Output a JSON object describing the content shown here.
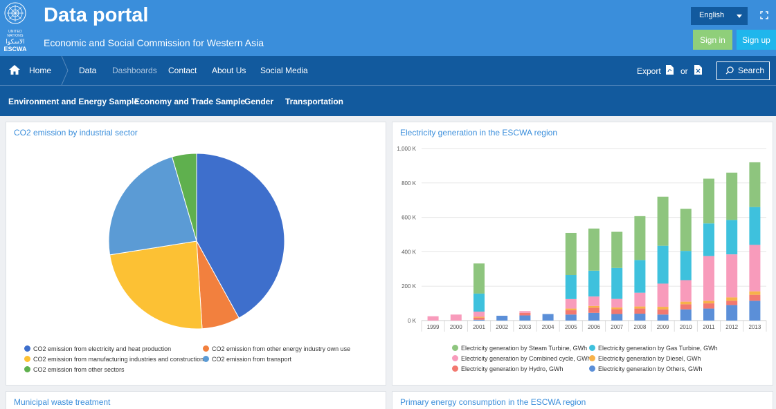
{
  "header": {
    "logo_un": "UNITED NATIONS",
    "logo_arabic": "الاسكوا",
    "logo_escwa": "ESCWA",
    "title": "Data portal",
    "subtitle": "Economic and Social Commission for Western Asia",
    "language": "English",
    "signin_label": "Sign in",
    "signup_label": "Sign up",
    "colors": {
      "header_bg": "#3a8edb",
      "nav_bg": "#125a9e",
      "signin": "#8fcf7a",
      "signup": "#1fb6ec"
    }
  },
  "nav": {
    "items": [
      "Home",
      "Data",
      "Dashboards",
      "Contact",
      "About Us",
      "Social Media"
    ],
    "export_label": "Export",
    "or_label": "or",
    "search_label": "Search"
  },
  "subnav": {
    "items": [
      "Environment and Energy Sample",
      "Economy and Trade Sample",
      "Gender",
      "Transportation"
    ]
  },
  "panels": {
    "co2_title": "CO2 emission by industrial sector",
    "elec_title": "Electricity generation in the ESCWA region",
    "waste_title": "Municipal waste treatment",
    "primary_title": "Primary energy consumption in the ESCWA region"
  },
  "chart_data": [
    {
      "type": "pie",
      "title": "CO2 emission by industrial sector",
      "legend_position": "bottom",
      "slices": [
        {
          "name": "CO2 emission from electricity and heat production",
          "value": 42.0,
          "color": "#3e6fcc"
        },
        {
          "name": "CO2 emission from other energy industry own use",
          "value": 7.0,
          "color": "#f2803e"
        },
        {
          "name": "CO2 emission from manufacturing industries and construction",
          "value": 23.5,
          "color": "#fcc134"
        },
        {
          "name": "CO2 emission from transport",
          "value": 23.0,
          "color": "#5b9bd5"
        },
        {
          "name": "CO2 emission from other sectors",
          "value": 4.5,
          "color": "#5fb04e"
        }
      ]
    },
    {
      "type": "bar",
      "stacked": true,
      "title": "Electricity generation in the ESCWA region",
      "legend_position": "bottom",
      "ylim": [
        0,
        1000000
      ],
      "yticks": [
        "0 K",
        "200 K",
        "400 K",
        "600 K",
        "800 K",
        "1,000 K"
      ],
      "categories": [
        "1999",
        "2000",
        "2001",
        "2002",
        "2003",
        "2004",
        "2005",
        "2006",
        "2007",
        "2008",
        "2009",
        "2010",
        "2011",
        "2012",
        "2013"
      ],
      "series": [
        {
          "name": "Electricity generation by Others, GWh",
          "color": "#5b8fd8",
          "values": [
            0,
            0,
            5000,
            28000,
            30000,
            38000,
            35000,
            45000,
            38000,
            40000,
            35000,
            65000,
            70000,
            90000,
            115000
          ]
        },
        {
          "name": "Electricity generation by Hydro, GWh",
          "color": "#f2786f",
          "values": [
            0,
            0,
            12000,
            0,
            15000,
            0,
            25000,
            30000,
            28000,
            30000,
            30000,
            30000,
            30000,
            25000,
            35000
          ]
        },
        {
          "name": "Electricity generation by Diesel, GWh",
          "color": "#f7b24a",
          "values": [
            0,
            0,
            5000,
            0,
            0,
            0,
            10000,
            10000,
            10000,
            12000,
            15000,
            15000,
            15000,
            20000,
            20000
          ]
        },
        {
          "name": "Electricity generation by Combined cycle, GWh",
          "color": "#f89bbb",
          "values": [
            25000,
            35000,
            30000,
            0,
            10000,
            0,
            55000,
            55000,
            50000,
            80000,
            135000,
            125000,
            260000,
            250000,
            270000
          ]
        },
        {
          "name": "Electricity generation by Gas Turbine, GWh",
          "color": "#3ec1dd",
          "values": [
            0,
            0,
            105000,
            0,
            0,
            0,
            140000,
            150000,
            180000,
            190000,
            220000,
            170000,
            190000,
            200000,
            220000
          ]
        },
        {
          "name": "Electricity generation by Steam Turbine, GWh",
          "color": "#8ec57e",
          "values": [
            0,
            0,
            175000,
            0,
            0,
            0,
            245000,
            245000,
            210000,
            255000,
            285000,
            245000,
            260000,
            275000,
            260000
          ]
        }
      ]
    }
  ]
}
